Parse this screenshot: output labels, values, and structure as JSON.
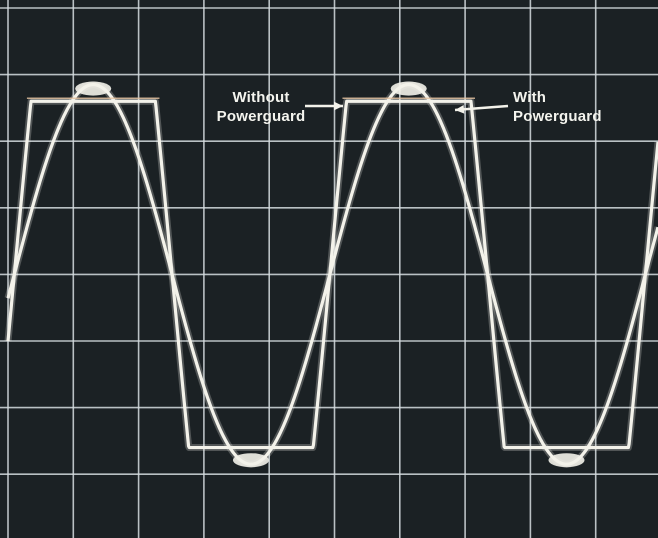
{
  "chart_data": {
    "type": "line",
    "title": "",
    "xlabel": "",
    "ylabel": "",
    "grid": true,
    "grid_divisions": {
      "x": 10,
      "y": 8
    },
    "x_units": "cycles",
    "xlim": [
      -0.02,
      2.04
    ],
    "ylim": [
      -4,
      4
    ],
    "series": [
      {
        "key": "with",
        "name": "With Powerguard",
        "shape": "sine",
        "amplitude": 2.85,
        "phase_start": 0.0
      },
      {
        "key": "without",
        "name": "Without Powerguard",
        "shape": "clipped-sine",
        "peak": 2.85,
        "clip": 2.6,
        "phase_start": 0.0
      }
    ],
    "annotations": [
      {
        "key": "without",
        "line1": "Without",
        "line2": "Powerguard",
        "points_to": "without"
      },
      {
        "key": "with",
        "line1": "With",
        "line2": "Powerguard",
        "points_to": "with"
      }
    ]
  },
  "colors": {
    "background": "#1b2124",
    "grid": "#d6dde0",
    "trace": "#f3f2ea",
    "peak_tint": "#e6c3a0"
  }
}
